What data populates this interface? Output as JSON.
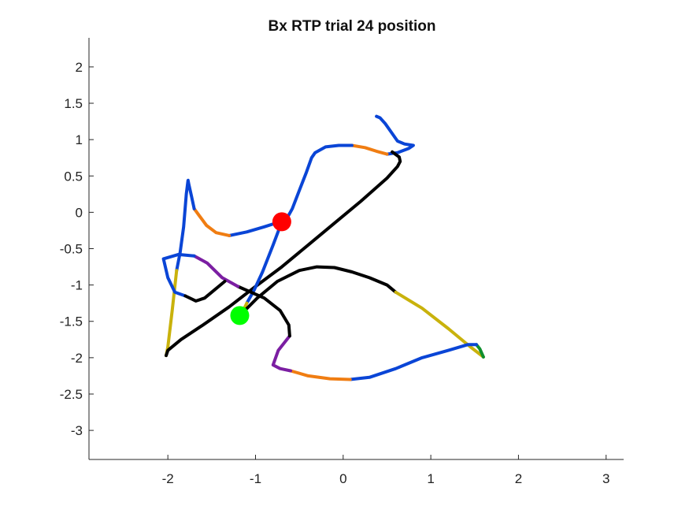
{
  "chart_data": {
    "type": "line",
    "title": "Bx  RTP trial 24 position",
    "xlabel": "",
    "ylabel": "",
    "xlim": [
      -2.9,
      3.2
    ],
    "ylim": [
      -3.4,
      2.4
    ],
    "xticks": [
      -2,
      -1,
      0,
      1,
      2,
      3
    ],
    "yticks": [
      -3,
      -2.5,
      -2,
      -1.5,
      -1,
      -0.5,
      0,
      0.5,
      1,
      1.5,
      2
    ],
    "xtick_labels": [
      "-2",
      "-1",
      "0",
      "1",
      "2",
      "3"
    ],
    "ytick_labels": [
      "-3",
      "-2.5",
      "-2",
      "-1.5",
      "-1",
      "-0.5",
      "0",
      "0.5",
      "1",
      "1.5",
      "2"
    ],
    "grid": false,
    "legend": "none",
    "segments": [
      {
        "color": "#0a45d6",
        "points": [
          [
            0.38,
            1.32
          ],
          [
            0.42,
            1.3
          ],
          [
            0.48,
            1.22
          ],
          [
            0.55,
            1.1
          ],
          [
            0.62,
            0.98
          ],
          [
            0.7,
            0.94
          ],
          [
            0.8,
            0.92
          ],
          [
            0.75,
            0.88
          ],
          [
            0.62,
            0.82
          ],
          [
            0.5,
            0.8
          ]
        ]
      },
      {
        "color": "#f07d12",
        "points": [
          [
            0.5,
            0.8
          ],
          [
            0.38,
            0.84
          ],
          [
            0.25,
            0.89
          ],
          [
            0.1,
            0.92
          ]
        ]
      },
      {
        "color": "#0a45d6",
        "points": [
          [
            0.1,
            0.92
          ],
          [
            -0.05,
            0.92
          ],
          [
            -0.2,
            0.9
          ],
          [
            -0.32,
            0.82
          ],
          [
            -0.36,
            0.75
          ],
          [
            -0.42,
            0.55
          ],
          [
            -0.5,
            0.3
          ],
          [
            -0.58,
            0.05
          ],
          [
            -0.65,
            -0.1
          ],
          [
            -0.72,
            -0.13
          ],
          [
            -0.9,
            -0.2
          ],
          [
            -1.1,
            -0.27
          ],
          [
            -1.3,
            -0.32
          ]
        ]
      },
      {
        "color": "#f07d12",
        "points": [
          [
            -1.3,
            -0.32
          ],
          [
            -1.45,
            -0.28
          ],
          [
            -1.56,
            -0.18
          ],
          [
            -1.64,
            -0.05
          ],
          [
            -1.7,
            0.05
          ]
        ]
      },
      {
        "color": "#0a45d6",
        "points": [
          [
            -1.7,
            0.05
          ],
          [
            -1.73,
            0.22
          ],
          [
            -1.76,
            0.38
          ],
          [
            -1.77,
            0.44
          ],
          [
            -1.79,
            0.25
          ],
          [
            -1.82,
            -0.2
          ],
          [
            -1.86,
            -0.55
          ],
          [
            -1.9,
            -0.8
          ]
        ]
      },
      {
        "color": "#c9b20c",
        "points": [
          [
            -1.9,
            -0.8
          ],
          [
            -1.95,
            -1.35
          ],
          [
            -2.0,
            -1.85
          ],
          [
            -2.02,
            -1.97
          ]
        ]
      },
      {
        "color": "#000000",
        "points": [
          [
            -2.02,
            -1.97
          ],
          [
            -2.0,
            -1.9
          ],
          [
            -1.85,
            -1.75
          ],
          [
            -1.6,
            -1.55
          ],
          [
            -1.3,
            -1.3
          ],
          [
            -1.0,
            -1.02
          ],
          [
            -0.7,
            -0.75
          ],
          [
            -0.4,
            -0.45
          ],
          [
            -0.1,
            -0.15
          ],
          [
            0.2,
            0.15
          ],
          [
            0.5,
            0.47
          ],
          [
            0.62,
            0.63
          ],
          [
            0.65,
            0.7
          ],
          [
            0.64,
            0.76
          ],
          [
            0.56,
            0.83
          ]
        ]
      },
      {
        "color": "#0a45d6",
        "points": [
          [
            -0.7,
            -0.13
          ],
          [
            -0.8,
            -0.45
          ],
          [
            -0.92,
            -0.82
          ],
          [
            -1.02,
            -1.08
          ],
          [
            -1.1,
            -1.25
          ]
        ]
      },
      {
        "color": "#c9b20c",
        "points": [
          [
            -1.1,
            -1.25
          ],
          [
            -1.14,
            -1.35
          ],
          [
            -1.18,
            -1.42
          ]
        ]
      },
      {
        "color": "#000000",
        "points": [
          [
            -1.18,
            -1.42
          ],
          [
            -0.98,
            -1.18
          ],
          [
            -0.75,
            -0.95
          ],
          [
            -0.5,
            -0.8
          ],
          [
            -0.3,
            -0.75
          ],
          [
            -0.1,
            -0.76
          ],
          [
            0.1,
            -0.82
          ],
          [
            0.3,
            -0.9
          ],
          [
            0.5,
            -1.0
          ],
          [
            0.6,
            -1.1
          ]
        ]
      },
      {
        "color": "#c9b20c",
        "points": [
          [
            0.6,
            -1.1
          ],
          [
            0.9,
            -1.32
          ],
          [
            1.2,
            -1.6
          ],
          [
            1.45,
            -1.85
          ],
          [
            1.6,
            -1.99
          ]
        ]
      },
      {
        "color": "#0f8f2e",
        "points": [
          [
            1.6,
            -1.99
          ],
          [
            1.56,
            -1.88
          ],
          [
            1.52,
            -1.82
          ]
        ]
      },
      {
        "color": "#0a45d6",
        "points": [
          [
            1.52,
            -1.82
          ],
          [
            1.42,
            -1.82
          ],
          [
            1.2,
            -1.9
          ],
          [
            0.9,
            -2.0
          ],
          [
            0.6,
            -2.15
          ],
          [
            0.3,
            -2.27
          ],
          [
            0.08,
            -2.3
          ]
        ]
      },
      {
        "color": "#f07d12",
        "points": [
          [
            0.08,
            -2.3
          ],
          [
            -0.15,
            -2.29
          ],
          [
            -0.4,
            -2.25
          ],
          [
            -0.6,
            -2.18
          ]
        ]
      },
      {
        "color": "#7b1ea2",
        "points": [
          [
            -0.6,
            -2.18
          ],
          [
            -0.72,
            -2.15
          ],
          [
            -0.8,
            -2.1
          ],
          [
            -0.74,
            -1.9
          ],
          [
            -0.61,
            -1.7
          ]
        ]
      },
      {
        "color": "#000000",
        "points": [
          [
            -0.61,
            -1.7
          ],
          [
            -0.62,
            -1.55
          ],
          [
            -0.72,
            -1.35
          ],
          [
            -0.9,
            -1.18
          ],
          [
            -1.2,
            -1.02
          ]
        ]
      },
      {
        "color": "#7b1ea2",
        "points": [
          [
            -1.2,
            -1.02
          ],
          [
            -1.38,
            -0.9
          ],
          [
            -1.55,
            -0.7
          ],
          [
            -1.7,
            -0.6
          ]
        ]
      },
      {
        "color": "#0a45d6",
        "points": [
          [
            -1.7,
            -0.6
          ],
          [
            -1.88,
            -0.58
          ],
          [
            -2.05,
            -0.64
          ],
          [
            -2.0,
            -0.9
          ],
          [
            -1.92,
            -1.1
          ],
          [
            -1.8,
            -1.15
          ]
        ]
      },
      {
        "color": "#000000",
        "points": [
          [
            -1.8,
            -1.15
          ],
          [
            -1.68,
            -1.22
          ],
          [
            -1.58,
            -1.18
          ],
          [
            -1.5,
            -1.1
          ],
          [
            -1.35,
            -0.95
          ]
        ]
      }
    ],
    "markers": [
      {
        "color": "#ff0000",
        "point": [
          -0.7,
          -0.13
        ]
      },
      {
        "color": "#00ff00",
        "point": [
          -1.18,
          -1.42
        ]
      }
    ]
  }
}
